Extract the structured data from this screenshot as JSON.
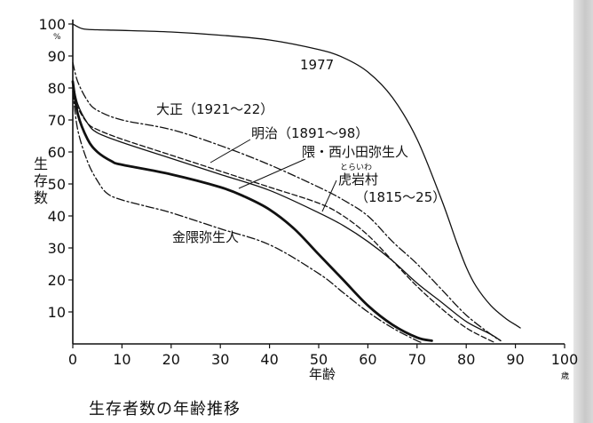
{
  "chart_data": {
    "type": "line",
    "caption": "生存者数の年齢推移",
    "xlabel": "年齢",
    "ylabel": [
      "生",
      "存",
      "数"
    ],
    "y_unit": "%",
    "x_unit": "歳",
    "xlim": [
      0,
      100
    ],
    "ylim": [
      0,
      100
    ],
    "x_ticks": [
      "0",
      "10",
      "20",
      "30",
      "40",
      "50",
      "60",
      "70",
      "80",
      "90",
      "100"
    ],
    "y_ticks": [
      "10",
      "20",
      "30",
      "40",
      "50",
      "60",
      "70",
      "80",
      "90",
      "100"
    ],
    "grid": false,
    "series": [
      {
        "name": "1977",
        "style": "solid-thin",
        "x": [
          0,
          2,
          5,
          10,
          20,
          30,
          40,
          50,
          55,
          60,
          65,
          70,
          75,
          78,
          80,
          82,
          85,
          88,
          90,
          91
        ],
        "y": [
          100,
          98.5,
          98.2,
          98,
          97.5,
          96.5,
          95,
          92,
          89.5,
          85,
          77,
          64,
          45,
          32,
          24,
          18,
          12,
          8,
          6,
          5
        ]
      },
      {
        "name": "大正（1921～22）",
        "style": "dash-dot",
        "x": [
          0,
          1,
          3,
          5,
          10,
          20,
          30,
          40,
          50,
          55,
          60,
          65,
          70,
          75,
          80,
          85,
          87
        ],
        "y": [
          88,
          82,
          76,
          73,
          70,
          67,
          62,
          56,
          49,
          45,
          40,
          32,
          25,
          17,
          9,
          3,
          1
        ]
      },
      {
        "name": "明治（1891～98）",
        "style": "solid-thin",
        "x": [
          0,
          1,
          3,
          5,
          10,
          20,
          30,
          40,
          50,
          55,
          60,
          65,
          70,
          75,
          80,
          85,
          87
        ],
        "y": [
          82,
          75,
          69,
          66,
          63,
          58,
          53,
          48,
          41,
          37,
          32,
          26,
          19,
          13,
          7,
          3,
          1
        ]
      },
      {
        "name": "虎岩村（1815～25）",
        "style": "dashed",
        "x": [
          0,
          1,
          3,
          5,
          10,
          20,
          30,
          40,
          50,
          55,
          60,
          65,
          70,
          75,
          80,
          85,
          86
        ],
        "y": [
          80,
          74,
          69,
          67,
          64,
          59,
          54,
          49,
          44,
          40,
          34,
          26,
          18,
          11,
          5,
          1,
          0.5
        ]
      },
      {
        "name": "隈・西小田弥生人",
        "style": "solid-bold",
        "x": [
          0,
          1,
          3,
          5,
          8,
          10,
          20,
          30,
          35,
          40,
          45,
          50,
          55,
          60,
          65,
          70,
          73
        ],
        "y": [
          82,
          72,
          64,
          60,
          57,
          56,
          53,
          49,
          46,
          42,
          36,
          28,
          20,
          12,
          6,
          2,
          1
        ]
      },
      {
        "name": "金隈弥生人",
        "style": "dash-dot",
        "x": [
          0,
          1,
          3,
          5,
          7,
          10,
          15,
          20,
          30,
          40,
          50,
          55,
          60,
          65,
          70,
          71
        ],
        "y": [
          79,
          67,
          57,
          51,
          47,
          45,
          43,
          41,
          36,
          31,
          22,
          16,
          10,
          5,
          1,
          0.5
        ]
      }
    ],
    "annotations": [
      {
        "text": "1977"
      },
      {
        "text": "大正（1921～22）"
      },
      {
        "text": "明治（1891～98）"
      },
      {
        "text": "隈・西小田弥生人"
      },
      {
        "text": "とらいわ",
        "note": "ruby"
      },
      {
        "text": "虎岩村"
      },
      {
        "text": "（1815～25）"
      },
      {
        "text": "金隈弥生人"
      }
    ]
  }
}
